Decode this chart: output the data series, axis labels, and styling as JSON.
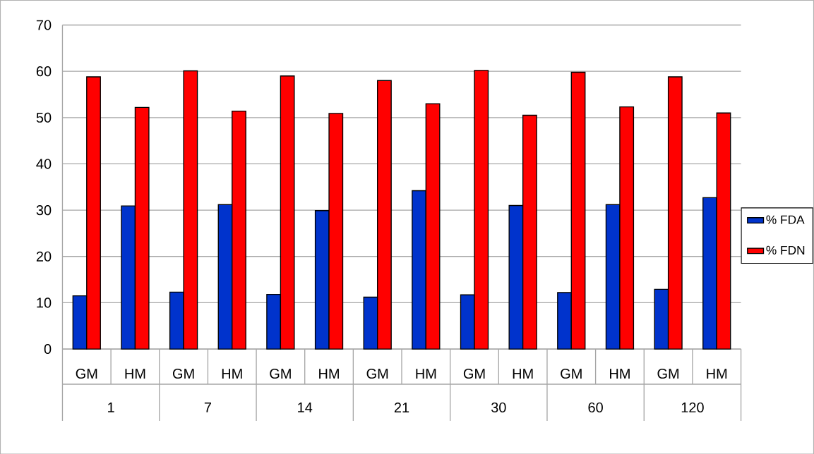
{
  "chart_data": {
    "type": "bar",
    "categories": [
      "GM",
      "HM",
      "GM",
      "HM",
      "GM",
      "HM",
      "GM",
      "HM",
      "GM",
      "HM",
      "GM",
      "HM",
      "GM",
      "HM"
    ],
    "series": [
      {
        "name": "% FDA",
        "color": "#0033cc",
        "values": [
          11.5,
          30.9,
          12.3,
          31.2,
          11.8,
          29.9,
          11.2,
          34.2,
          11.7,
          31.0,
          12.2,
          31.2,
          12.9,
          32.7
        ]
      },
      {
        "name": "% FDN",
        "color": "#ff0000",
        "values": [
          58.8,
          52.2,
          60.1,
          51.4,
          59.0,
          50.9,
          58.0,
          53.0,
          60.2,
          50.5,
          59.8,
          52.3,
          58.8,
          51.0
        ]
      }
    ],
    "annotations": [
      "1",
      "7",
      "14",
      "21",
      "30",
      "60",
      "120"
    ],
    "ylim": [
      0,
      70
    ],
    "yticks": [
      0,
      10,
      20,
      30,
      40,
      50,
      60,
      70
    ],
    "grid": "y",
    "legend": "right"
  }
}
